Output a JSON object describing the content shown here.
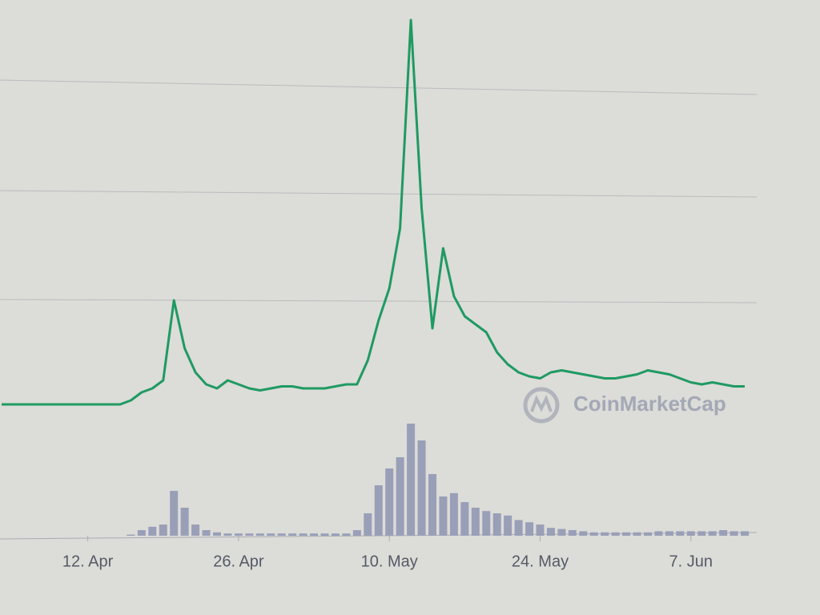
{
  "chart_data": {
    "type": "line",
    "watermark": "CoinMarketCap",
    "categories": [
      null,
      null,
      null,
      null,
      null,
      null,
      null,
      null,
      "12. Apr",
      null,
      null,
      null,
      null,
      null,
      null,
      null,
      null,
      null,
      null,
      null,
      null,
      null,
      "26. Apr",
      null,
      null,
      null,
      null,
      null,
      null,
      null,
      null,
      null,
      null,
      null,
      null,
      null,
      "10. May",
      null,
      null,
      null,
      null,
      null,
      null,
      null,
      null,
      null,
      null,
      null,
      null,
      null,
      "24. May",
      null,
      null,
      null,
      null,
      null,
      null,
      null,
      null,
      null,
      null,
      null,
      null,
      null,
      "7. Jun",
      null,
      null,
      null,
      null,
      null
    ],
    "price": {
      "color": "#1f9a62",
      "values": [
        11,
        11,
        11,
        11,
        11,
        11,
        11,
        11,
        11,
        11,
        11,
        11,
        12,
        14,
        15,
        17,
        37,
        25,
        19,
        16,
        15,
        17,
        16,
        15,
        14.5,
        15,
        15.5,
        15.5,
        15,
        15,
        15,
        15.5,
        16,
        16,
        22,
        32,
        40,
        55,
        107,
        60,
        30,
        50,
        38,
        33,
        31,
        29,
        24,
        21,
        19,
        18,
        17.5,
        19,
        19.5,
        19,
        18.5,
        18,
        17.5,
        17.5,
        18,
        18.5,
        19.5,
        19,
        18.5,
        17.5,
        16.5,
        16,
        16.5,
        16,
        15.5,
        15.5
      ]
    },
    "volume": {
      "color": "#9a9fb8",
      "values": [
        0,
        0,
        0,
        0,
        0,
        0,
        0,
        0,
        0,
        0,
        0,
        0,
        1,
        5,
        8,
        10,
        40,
        25,
        10,
        5,
        3,
        2,
        2,
        2,
        2,
        2,
        2,
        2,
        2,
        2,
        2,
        2,
        2,
        5,
        20,
        45,
        60,
        70,
        100,
        85,
        55,
        35,
        38,
        30,
        25,
        22,
        20,
        18,
        14,
        12,
        10,
        7,
        6,
        5,
        4,
        3,
        3,
        3,
        3,
        3,
        3,
        4,
        4,
        4,
        4,
        4,
        4,
        5,
        4,
        4
      ]
    }
  }
}
